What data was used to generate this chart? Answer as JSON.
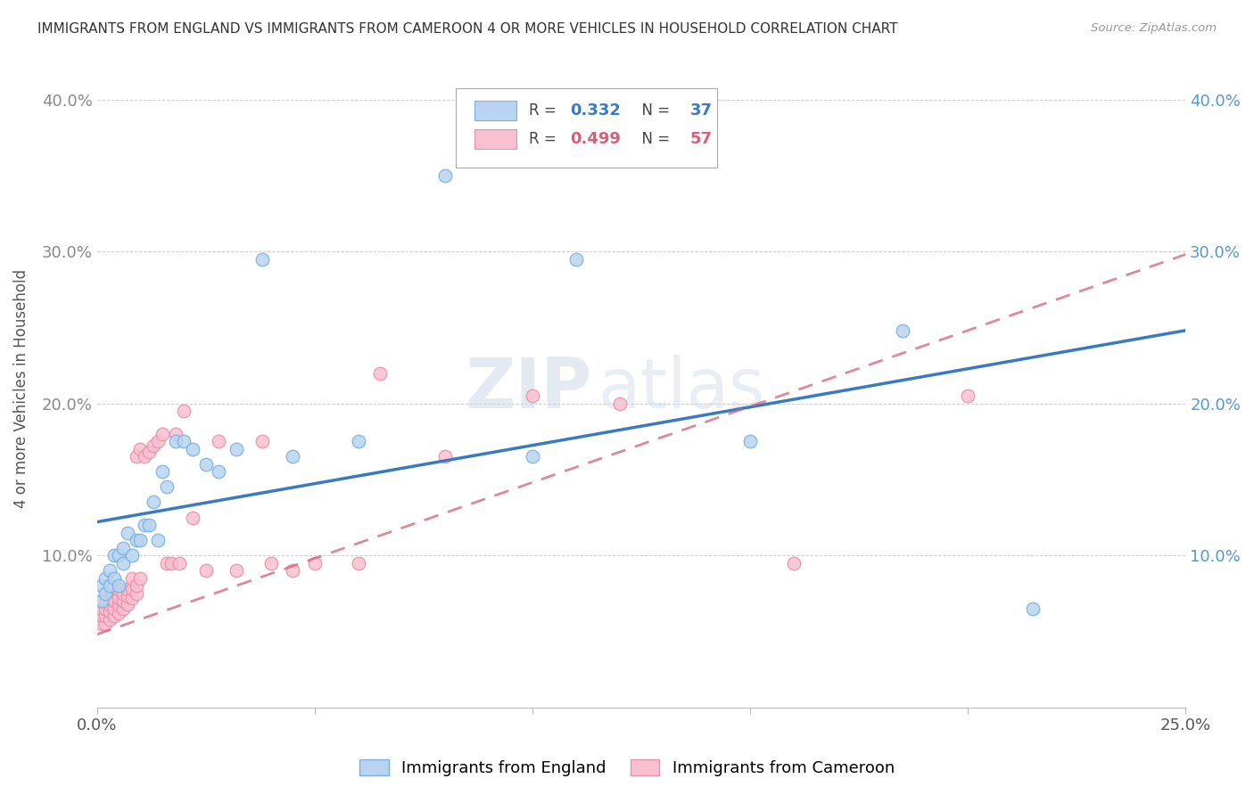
{
  "title": "IMMIGRANTS FROM ENGLAND VS IMMIGRANTS FROM CAMEROON 4 OR MORE VEHICLES IN HOUSEHOLD CORRELATION CHART",
  "source": "Source: ZipAtlas.com",
  "ylabel": "4 or more Vehicles in Household",
  "xlim": [
    0.0,
    0.25
  ],
  "ylim": [
    0.0,
    0.42
  ],
  "england_R": 0.332,
  "england_N": 37,
  "cameroon_R": 0.499,
  "cameroon_N": 57,
  "england_color": "#b8d4f0",
  "england_edge_color": "#7ab0de",
  "cameroon_color": "#f8c0d0",
  "cameroon_edge_color": "#e890a8",
  "england_line_color": "#3a7abf",
  "cameroon_line_color": "#d4607a",
  "watermark_zip": "ZIP",
  "watermark_atlas": "atlas",
  "legend_label_england": "Immigrants from England",
  "legend_label_cameroon": "Immigrants from Cameroon",
  "england_scatter_x": [
    0.001,
    0.001,
    0.002,
    0.002,
    0.003,
    0.003,
    0.004,
    0.004,
    0.005,
    0.005,
    0.006,
    0.006,
    0.007,
    0.008,
    0.009,
    0.01,
    0.011,
    0.012,
    0.013,
    0.014,
    0.015,
    0.016,
    0.018,
    0.02,
    0.022,
    0.025,
    0.028,
    0.032,
    0.038,
    0.045,
    0.06,
    0.08,
    0.1,
    0.11,
    0.15,
    0.185,
    0.215
  ],
  "england_scatter_y": [
    0.07,
    0.08,
    0.075,
    0.085,
    0.08,
    0.09,
    0.085,
    0.1,
    0.08,
    0.1,
    0.095,
    0.105,
    0.115,
    0.1,
    0.11,
    0.11,
    0.12,
    0.12,
    0.135,
    0.11,
    0.155,
    0.145,
    0.175,
    0.175,
    0.17,
    0.16,
    0.155,
    0.17,
    0.295,
    0.165,
    0.175,
    0.35,
    0.165,
    0.295,
    0.175,
    0.248,
    0.065
  ],
  "cameroon_scatter_x": [
    0.001,
    0.001,
    0.001,
    0.002,
    0.002,
    0.002,
    0.002,
    0.003,
    0.003,
    0.003,
    0.003,
    0.004,
    0.004,
    0.004,
    0.005,
    0.005,
    0.005,
    0.005,
    0.006,
    0.006,
    0.006,
    0.007,
    0.007,
    0.007,
    0.008,
    0.008,
    0.008,
    0.009,
    0.009,
    0.009,
    0.01,
    0.01,
    0.011,
    0.012,
    0.013,
    0.014,
    0.015,
    0.016,
    0.017,
    0.018,
    0.019,
    0.02,
    0.022,
    0.025,
    0.028,
    0.032,
    0.038,
    0.04,
    0.045,
    0.05,
    0.06,
    0.065,
    0.08,
    0.1,
    0.12,
    0.16,
    0.2
  ],
  "cameroon_scatter_y": [
    0.055,
    0.06,
    0.065,
    0.055,
    0.06,
    0.065,
    0.07,
    0.058,
    0.063,
    0.068,
    0.072,
    0.06,
    0.065,
    0.07,
    0.062,
    0.067,
    0.072,
    0.078,
    0.065,
    0.07,
    0.075,
    0.068,
    0.073,
    0.078,
    0.072,
    0.078,
    0.085,
    0.075,
    0.165,
    0.08,
    0.085,
    0.17,
    0.165,
    0.168,
    0.172,
    0.175,
    0.18,
    0.095,
    0.095,
    0.18,
    0.095,
    0.195,
    0.125,
    0.09,
    0.175,
    0.09,
    0.175,
    0.095,
    0.09,
    0.095,
    0.095,
    0.22,
    0.165,
    0.205,
    0.2,
    0.095,
    0.205
  ],
  "eng_line_x0": 0.0,
  "eng_line_y0": 0.122,
  "eng_line_x1": 0.25,
  "eng_line_y1": 0.248,
  "cam_line_x0": 0.0,
  "cam_line_y0": 0.048,
  "cam_line_x1": 0.25,
  "cam_line_y1": 0.298
}
